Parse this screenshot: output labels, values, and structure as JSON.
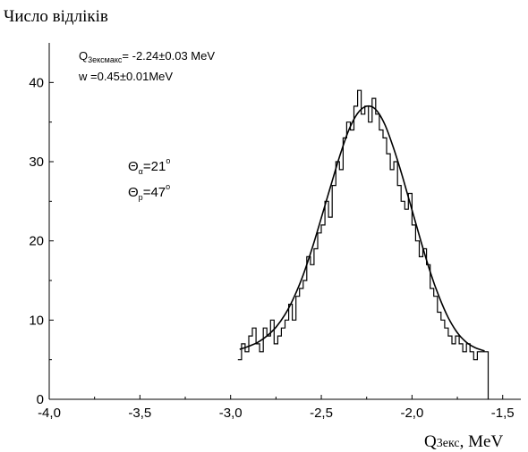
{
  "chart_data": {
    "type": "line",
    "ylabel": "Число відліків",
    "xlabel_main": "Q",
    "xlabel_sub": "3екс",
    "xlabel_unit": ", MeV",
    "xlim": [
      -4.0,
      -1.4
    ],
    "ylim": [
      0,
      45
    ],
    "x_ticks": [
      -4.0,
      -3.5,
      -3.0,
      -2.5,
      -2.0,
      -1.5
    ],
    "x_tick_labels": [
      "-4,0",
      "-3,5",
      "-3,0",
      "-2,5",
      "-2,0",
      "-1,5"
    ],
    "y_ticks": [
      0,
      10,
      20,
      30,
      40
    ],
    "y_tick_labels": [
      "0",
      "10",
      "20",
      "30",
      "40"
    ],
    "grid": false,
    "annotations": {
      "q_main": "Q",
      "q_sub": "3ексмакс",
      "q_value": "= -2.24±0.03 MeV",
      "w_text": "w =0.45±0.01MeV",
      "theta_alpha_main": "Θ",
      "theta_alpha_sub": "α",
      "theta_alpha_value": "=21",
      "theta_alpha_deg": "o",
      "theta_p_main": "Θ",
      "theta_p_sub": "p",
      "theta_p_value": "=47",
      "theta_p_deg": "o"
    },
    "series": [
      {
        "kind": "histogram",
        "bin_edges": [
          -2.96,
          -2.94,
          -2.92,
          -2.9,
          -2.88,
          -2.86,
          -2.84,
          -2.82,
          -2.8,
          -2.78,
          -2.76,
          -2.74,
          -2.72,
          -2.7,
          -2.68,
          -2.66,
          -2.64,
          -2.62,
          -2.6,
          -2.58,
          -2.56,
          -2.54,
          -2.52,
          -2.5,
          -2.48,
          -2.46,
          -2.44,
          -2.42,
          -2.4,
          -2.38,
          -2.36,
          -2.34,
          -2.32,
          -2.3,
          -2.28,
          -2.26,
          -2.24,
          -2.22,
          -2.2,
          -2.18,
          -2.16,
          -2.14,
          -2.12,
          -2.1,
          -2.08,
          -2.06,
          -2.04,
          -2.02,
          -2.0,
          -1.98,
          -1.96,
          -1.94,
          -1.92,
          -1.9,
          -1.88,
          -1.86,
          -1.84,
          -1.82,
          -1.8,
          -1.78,
          -1.76,
          -1.74,
          -1.72,
          -1.7,
          -1.68,
          -1.66,
          -1.64,
          -1.62,
          -1.6,
          -1.58
        ],
        "counts": [
          5,
          7,
          6,
          8,
          9,
          7,
          6,
          9,
          8,
          10,
          7,
          8,
          9,
          10,
          12,
          10,
          13,
          14,
          15,
          18,
          17,
          19,
          21,
          22,
          25,
          23,
          27,
          30,
          29,
          33,
          35,
          34,
          37,
          39,
          36,
          37,
          35,
          38,
          36,
          34,
          33,
          31,
          29,
          30,
          27,
          25,
          24,
          26,
          22,
          20,
          18,
          19,
          17,
          14,
          13,
          11,
          10,
          9,
          8,
          7,
          8,
          7,
          6,
          7,
          6,
          5,
          6,
          6,
          6
        ],
        "drop_to": 0
      },
      {
        "kind": "fit",
        "name": "",
        "x": [
          -2.95,
          -2.9,
          -2.85,
          -2.8,
          -2.75,
          -2.7,
          -2.65,
          -2.6,
          -2.55,
          -2.5,
          -2.45,
          -2.4,
          -2.35,
          -2.3,
          -2.25,
          -2.2,
          -2.15,
          -2.1,
          -2.05,
          -2.0,
          -1.95,
          -1.9,
          -1.85,
          -1.8,
          -1.75,
          -1.7,
          -1.65,
          -1.6
        ],
        "y": [
          6.3,
          6.7,
          7.2,
          8.0,
          9.1,
          10.7,
          12.9,
          15.7,
          19.1,
          22.9,
          26.8,
          30.6,
          33.9,
          36.1,
          37.0,
          36.6,
          34.7,
          31.6,
          27.9,
          23.9,
          19.9,
          16.1,
          12.9,
          10.3,
          8.4,
          7.2,
          6.5,
          6.1
        ]
      }
    ]
  }
}
